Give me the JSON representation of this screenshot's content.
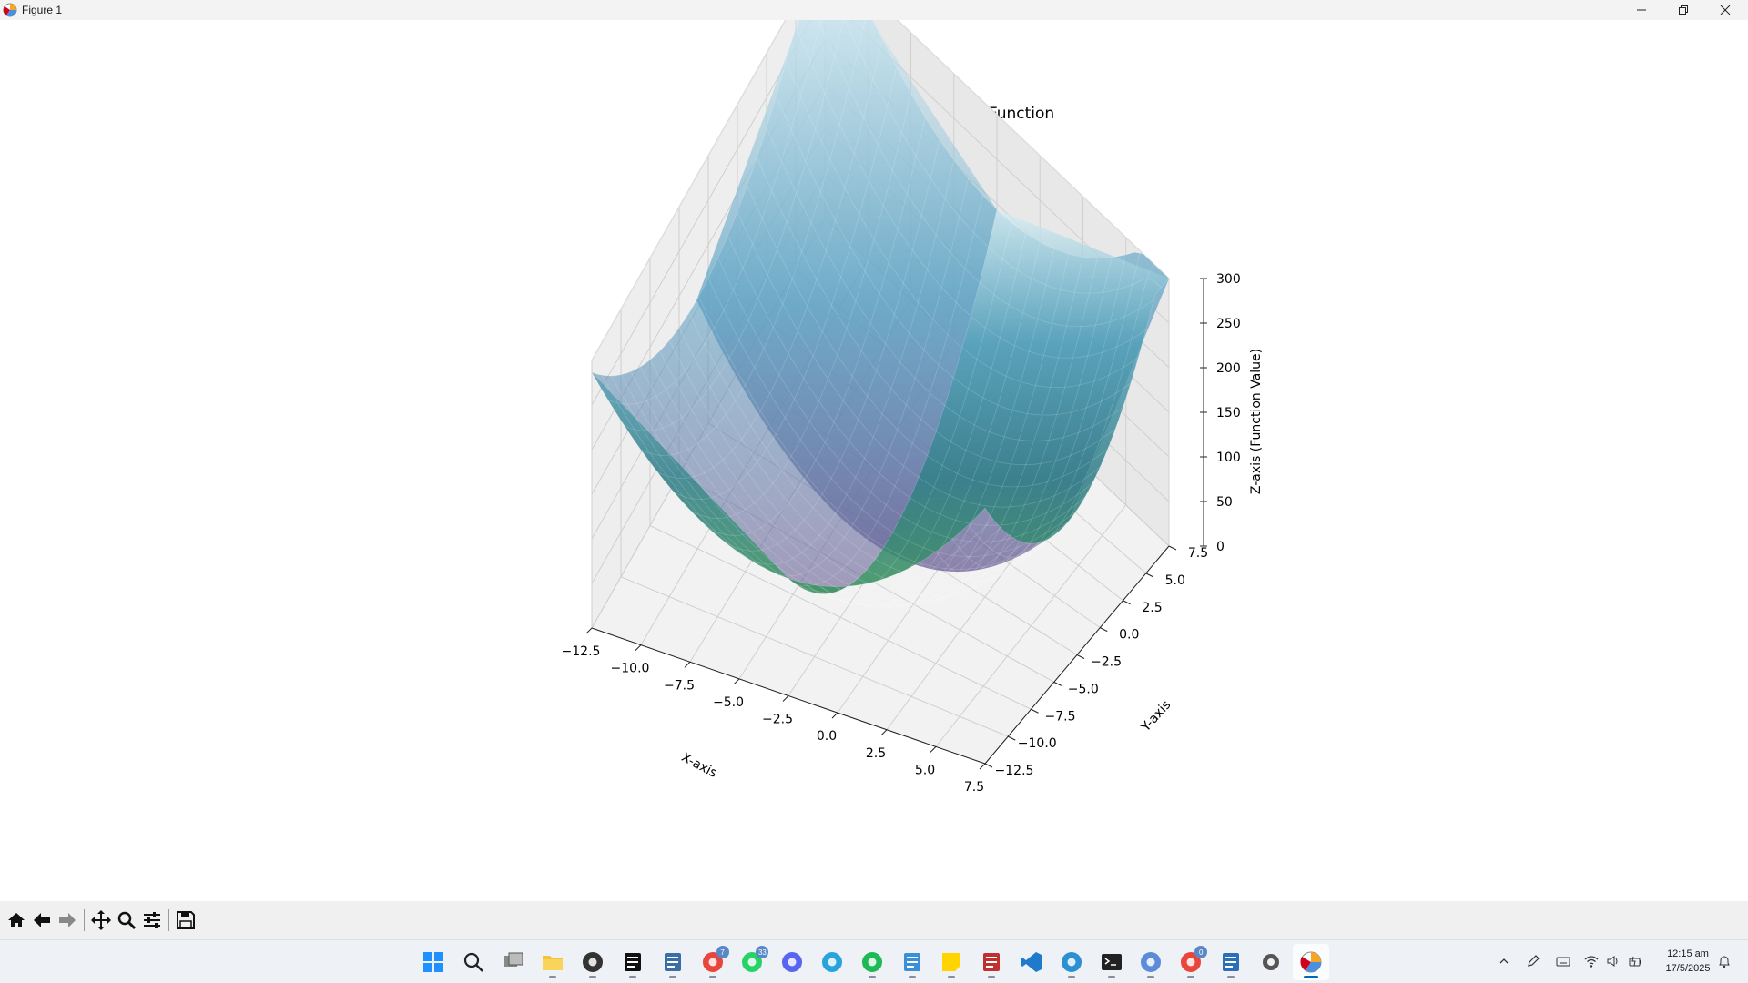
{
  "window": {
    "title": "Figure 1",
    "controls": [
      "minimize",
      "maximize",
      "close"
    ]
  },
  "chart_data": {
    "type": "surface",
    "title": "3D Surface Plot of the Objective Function",
    "xlabel": "X-axis",
    "ylabel": "Y-axis",
    "zlabel": "Z-axis (Function Value)",
    "xticks": [
      "−12.5",
      "−10.0",
      "−7.5",
      "−5.0",
      "−2.5",
      "0.0",
      "2.5",
      "5.0",
      "7.5"
    ],
    "yticks": [
      "−12.5",
      "−10.0",
      "−7.5",
      "−5.0",
      "−2.5",
      "0.0",
      "2.5",
      "5.0",
      "7.5"
    ],
    "zticks": [
      "0",
      "50",
      "100",
      "150",
      "200",
      "250",
      "300"
    ],
    "xlim": [
      -12.5,
      7.5
    ],
    "ylim": [
      -12.5,
      7.5
    ],
    "zlim": [
      0,
      300
    ],
    "colormap": "viridis",
    "alpha": 0.6,
    "grid": true
  },
  "toolbar": {
    "buttons": [
      "home-icon",
      "back-icon",
      "forward-icon",
      "pan-icon",
      "zoom-icon",
      "configure-icon",
      "save-icon"
    ]
  },
  "taskbar": {
    "apps": [
      "start",
      "search",
      "task-view",
      "file-explorer",
      "clock-app",
      "notion",
      "calculator",
      "chrome",
      "whatsapp",
      "discord",
      "telegram",
      "spotify",
      "notepad",
      "sticky-notes",
      "tools-app",
      "vscode",
      "edge",
      "terminal",
      "browser",
      "chrome-profile",
      "photos",
      "settings",
      "python-figure"
    ],
    "badges": {
      "chrome": "7",
      "whatsapp": "33",
      "chrome-profile": "0"
    },
    "time": "12:15 am",
    "date": "17/5/2025"
  }
}
